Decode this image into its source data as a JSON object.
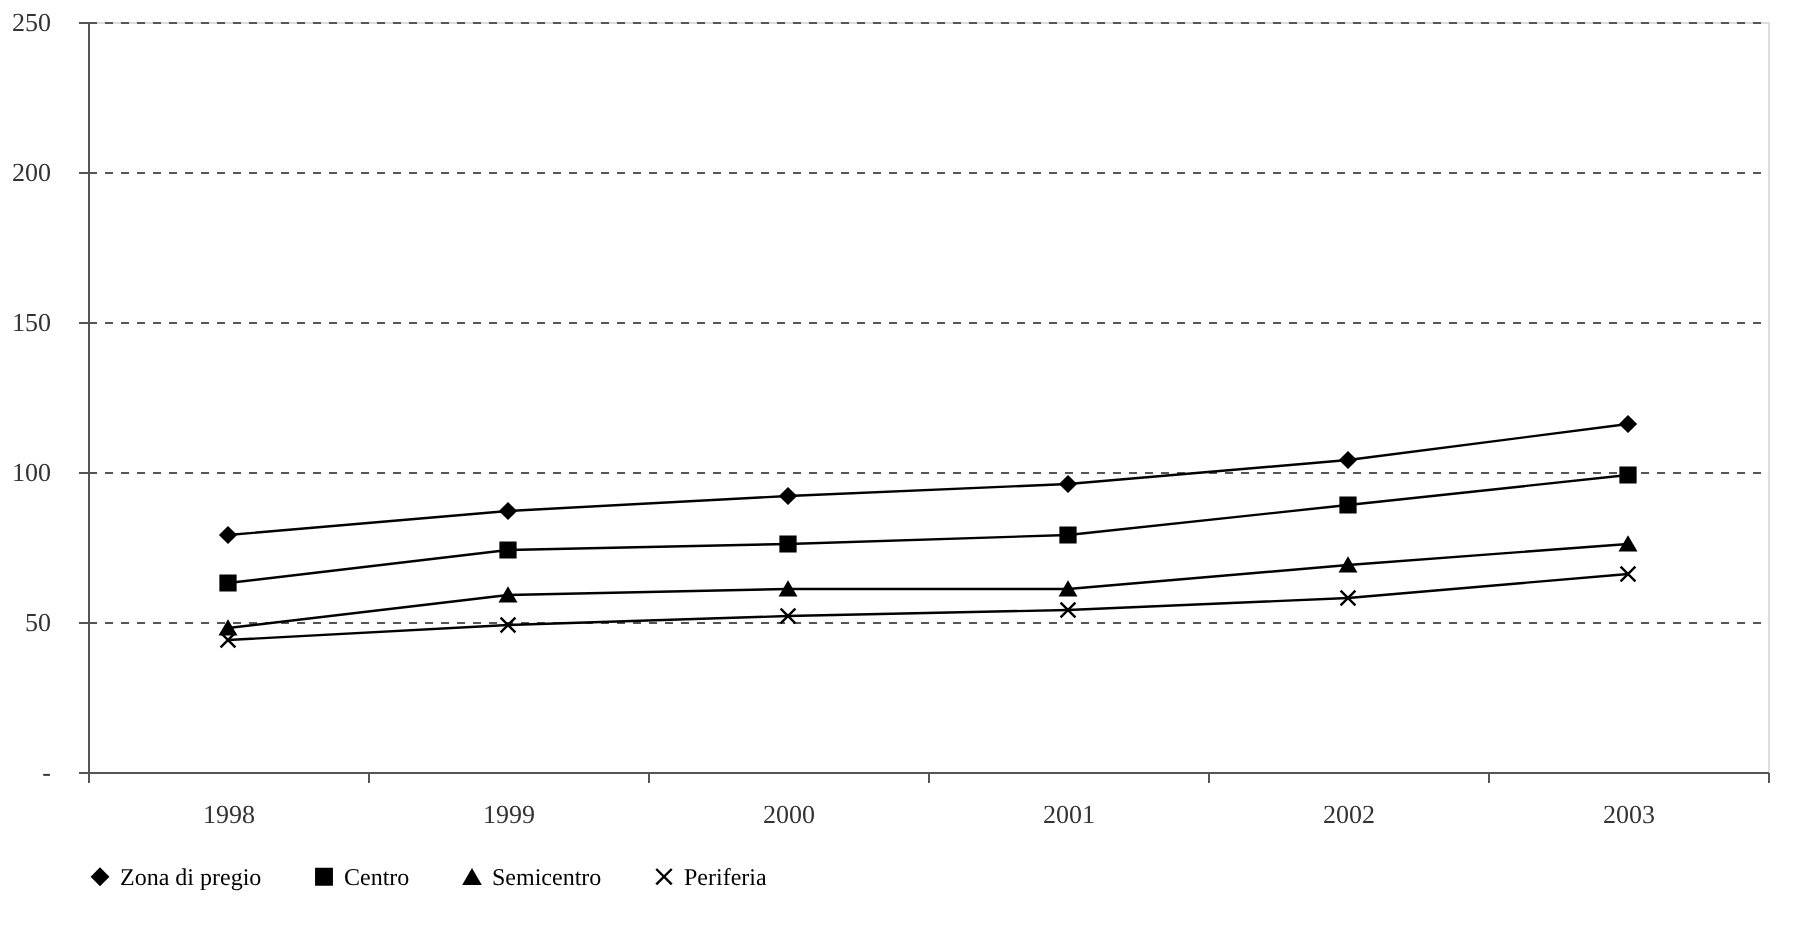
{
  "chart_data": {
    "type": "line",
    "categories": [
      "1998",
      "1999",
      "2000",
      "2001",
      "2002",
      "2003"
    ],
    "series": [
      {
        "name": "Zona di pregio",
        "color": "#000000",
        "marker": "diamond",
        "values": [
          79,
          87,
          92,
          96,
          104,
          116
        ]
      },
      {
        "name": "Centro",
        "color": "#000000",
        "marker": "square",
        "values": [
          63,
          74,
          76,
          79,
          89,
          99
        ]
      },
      {
        "name": "Semicentro",
        "color": "#000000",
        "marker": "triangle",
        "values": [
          48,
          59,
          61,
          61,
          69,
          76
        ]
      },
      {
        "name": "Periferia",
        "color": "#000000",
        "marker": "cross",
        "values": [
          44,
          49,
          52,
          54,
          58,
          66
        ]
      }
    ],
    "ylim": [
      0,
      250
    ],
    "yticks": [
      {
        "value": 0,
        "label": "-"
      },
      50,
      100,
      150,
      200,
      250
    ],
    "grid": "y",
    "legend": "bottom",
    "line_style": "solid"
  }
}
